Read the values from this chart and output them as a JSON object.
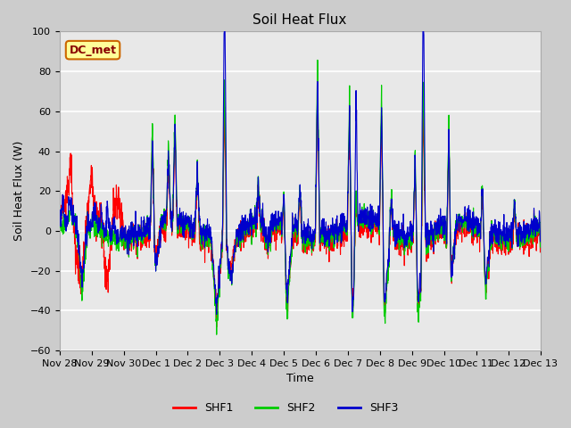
{
  "title": "Soil Heat Flux",
  "ylabel": "Soil Heat Flux (W)",
  "xlabel": "Time",
  "ylim": [
    -60,
    100
  ],
  "fig_bg": "#cccccc",
  "plot_bg": "#e8e8e8",
  "legend_items": [
    "SHF1",
    "SHF2",
    "SHF3"
  ],
  "legend_colors": [
    "#ff0000",
    "#00cc00",
    "#0000cc"
  ],
  "dc_met_label": "DC_met",
  "dc_met_bg": "#ffff99",
  "dc_met_border": "#cc6600",
  "dc_met_text": "#880000",
  "grid_color": "#d0d0d0",
  "tick_labels": [
    "Nov 28",
    "Nov 29",
    "Nov 30",
    "Dec 1",
    "Dec 2",
    "Dec 3",
    "Dec 4",
    "Dec 5",
    "Dec 6",
    "Dec 7",
    "Dec 8",
    "Dec 9",
    "Dec 10",
    "Dec 11",
    "Dec 12",
    "Dec 13"
  ],
  "n_points": 2000,
  "xlim": [
    0,
    15
  ]
}
